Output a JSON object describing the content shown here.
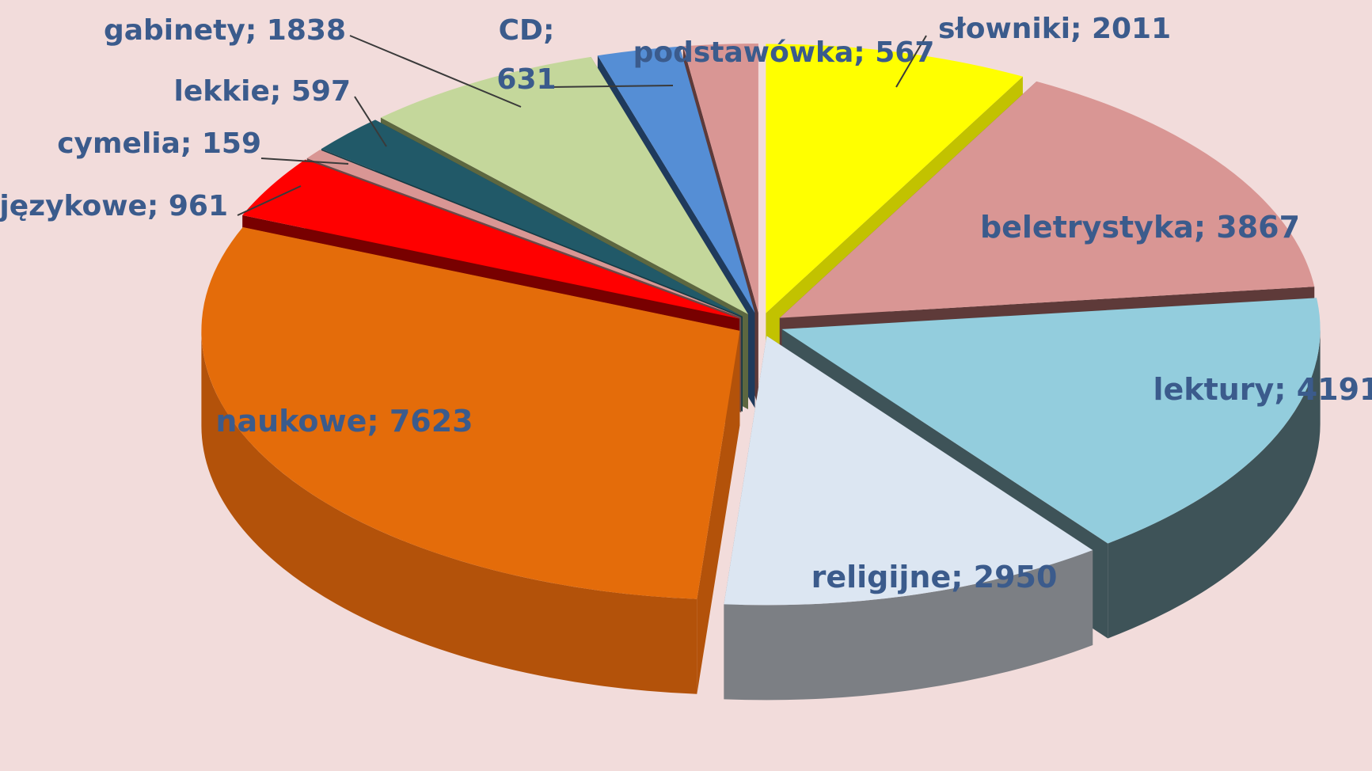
{
  "chart_data": {
    "type": "pie",
    "title": "",
    "legend": "none",
    "slices": [
      {
        "label": "słowniki",
        "value": 2011,
        "text": "słowniki; 2011",
        "color": "#ffff00",
        "side": "#c2c200"
      },
      {
        "label": "beletrystyka",
        "value": 3867,
        "text": "beletrystyka; 3867",
        "color": "#d99694",
        "side": "#5e3a39"
      },
      {
        "label": "lektury",
        "value": 4191,
        "text": "lektury; 4191",
        "color": "#93cddd",
        "side": "#3e5358"
      },
      {
        "label": "religijne",
        "value": 2950,
        "text": "religijne; 2950",
        "color": "#dce6f2",
        "side": "#7c7f84"
      },
      {
        "label": "naukowe",
        "value": 7623,
        "text": "naukowe; 7623",
        "color": "#e46c0a",
        "side": "#b3520a"
      },
      {
        "label": "językowe",
        "value": 961,
        "text": "językowe; 961",
        "color": "#ff0000",
        "side": "#780000"
      },
      {
        "label": "cymelia",
        "value": 159,
        "text": "cymelia; 159",
        "color": "#d99694",
        "side": "#6b4948"
      },
      {
        "label": "lekkie",
        "value": 597,
        "text": "lekkie; 597",
        "color": "#215968",
        "side": "#153a44"
      },
      {
        "label": "gabinety",
        "value": 1838,
        "text": "gabinety; 1838",
        "color": "#c4d79b",
        "side": "#5d6740"
      },
      {
        "label": "CD",
        "value": 631,
        "text_line1": "CD;",
        "text_line2": "631",
        "color": "#558ed5",
        "side": "#1f3a5c"
      },
      {
        "label": "podstawówka",
        "value": 567,
        "text": "podstawówka; 567",
        "color": "#d99694",
        "side": "#5e3a39"
      }
    ]
  }
}
